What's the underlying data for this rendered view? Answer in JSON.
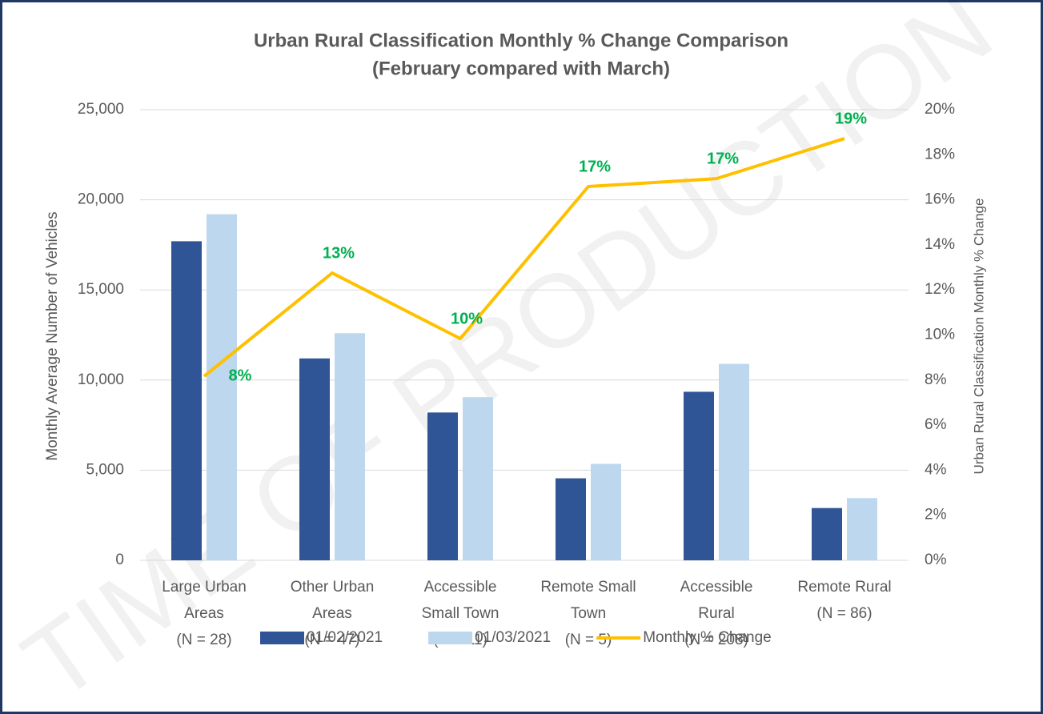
{
  "chart_data": {
    "type": "bar",
    "title": [
      "Urban Rural Classification Monthly % Change Comparison",
      "(February compared with March)"
    ],
    "watermark": "TIME OF PRODUCTION",
    "categories": [
      [
        "Large Urban",
        "Areas",
        "(N = 28)"
      ],
      [
        "Other Urban",
        "Areas",
        "(N = 47)"
      ],
      [
        "Accessible",
        "Small Town",
        "(N = 11)"
      ],
      [
        "Remote Small",
        "Town",
        "(N = 5)"
      ],
      [
        "Accessible",
        "Rural",
        "(N = 208)"
      ],
      [
        "Remote Rural",
        "(N = 86)"
      ]
    ],
    "series": [
      {
        "name": "01/02/2021",
        "color": "#2f5597",
        "values": [
          17700,
          11200,
          8200,
          4550,
          9350,
          2900
        ]
      },
      {
        "name": "01/03/2021",
        "color": "#bdd7ee",
        "values": [
          19200,
          12600,
          9050,
          5350,
          10900,
          3450
        ]
      },
      {
        "name": "Monthly % Change",
        "color": "#ffc000",
        "type": "line",
        "axis": "y2",
        "values": [
          8.17,
          12.75,
          9.84,
          16.59,
          16.94,
          18.72
        ],
        "value_labels": [
          "8%",
          "13%",
          "10%",
          "17%",
          "17%",
          "19%"
        ],
        "label_color": "#00b050"
      }
    ],
    "ylabel": "Monthly Average Number of Vehicles",
    "y2label": "Urban Rural Classification Monthly % Change",
    "ylim": [
      0,
      25000
    ],
    "yticks": [
      0,
      {
        "value": 5000,
        "label": "5,000"
      },
      {
        "value": 10000,
        "label": "10,000"
      },
      {
        "value": 15000,
        "label": "15,000"
      },
      {
        "value": 20000,
        "label": "20,000"
      },
      {
        "value": 25000,
        "label": "25,000"
      }
    ],
    "y2lim": [
      0,
      20
    ],
    "y2ticks": [
      {
        "value": 0,
        "label": "0%"
      },
      {
        "value": 2,
        "label": "2%"
      },
      {
        "value": 4,
        "label": "4%"
      },
      {
        "value": 6,
        "label": "6%"
      },
      {
        "value": 8,
        "label": "8%"
      },
      {
        "value": 10,
        "label": "10%"
      },
      {
        "value": 12,
        "label": "12%"
      },
      {
        "value": 14,
        "label": "14%"
      },
      {
        "value": 16,
        "label": "16%"
      },
      {
        "value": 18,
        "label": "18%"
      },
      {
        "value": 20,
        "label": "20%"
      }
    ],
    "grid": true,
    "legend": "bottom"
  }
}
